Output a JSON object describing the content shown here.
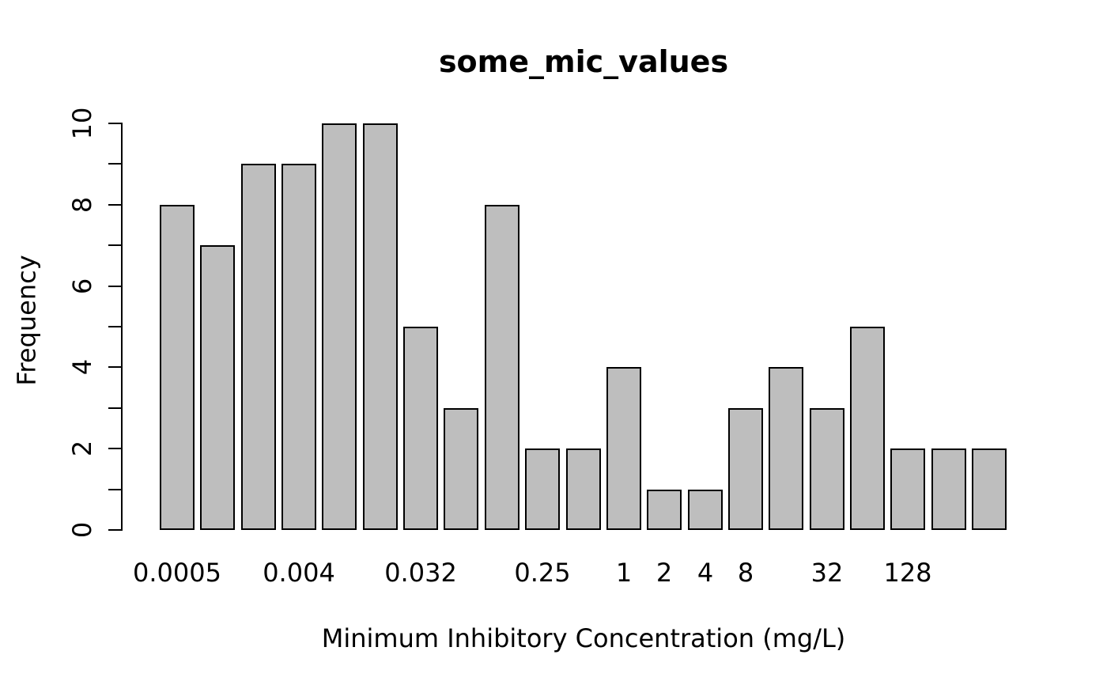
{
  "chart_data": {
    "type": "bar",
    "chart_kind": "histogram",
    "title": "some_mic_values",
    "xlabel": "Minimum Inhibitory Concentration (mg/L)",
    "ylabel": "Frequency",
    "values": [
      8,
      7,
      9,
      9,
      10,
      10,
      5,
      3,
      8,
      2,
      2,
      4,
      1,
      1,
      3,
      4,
      3,
      5,
      2,
      2,
      2
    ],
    "bar_count": 21,
    "y_axis": {
      "min": 0,
      "max": 10,
      "tick_every": 1,
      "label_every": 2,
      "labels": [
        "0",
        "2",
        "4",
        "6",
        "8",
        "10"
      ]
    },
    "x_tick_labels": [
      {
        "label": "0.0005",
        "bar_index": 0
      },
      {
        "label": "0.004",
        "bar_index": 3
      },
      {
        "label": "0.032",
        "bar_index": 6
      },
      {
        "label": "0.25",
        "bar_index": 9
      },
      {
        "label": "1",
        "bar_index": 11
      },
      {
        "label": "2",
        "bar_index": 12
      },
      {
        "label": "4",
        "bar_index": 13
      },
      {
        "label": "8",
        "bar_index": 14
      },
      {
        "label": "32",
        "bar_index": 16
      },
      {
        "label": "128",
        "bar_index": 18
      }
    ],
    "grid": false,
    "legend": "none",
    "colors": {
      "bar_fill": "#BEBEBE",
      "bar_border": "#000000",
      "axis": "#000000",
      "text": "#000000",
      "background": "#FFFFFF"
    }
  }
}
